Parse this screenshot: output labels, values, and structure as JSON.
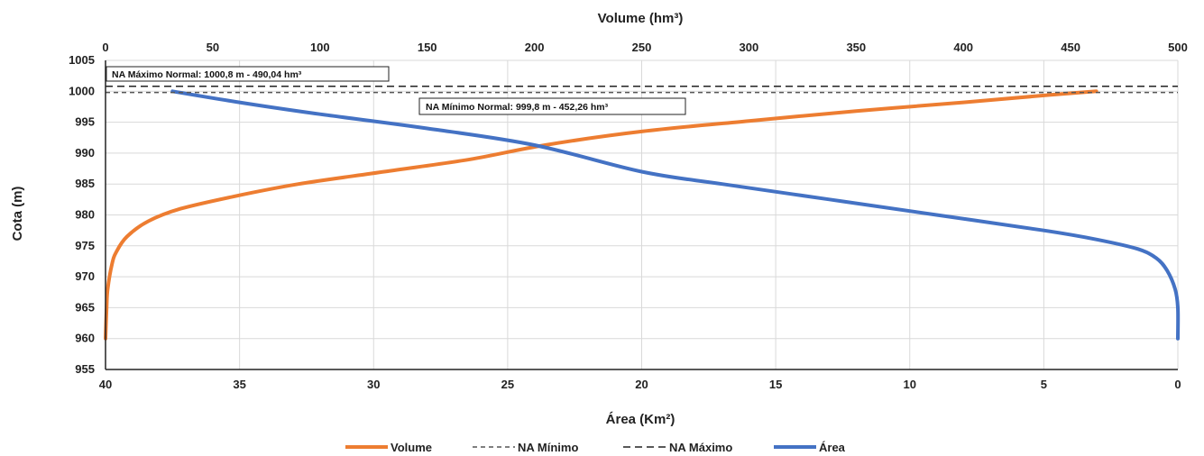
{
  "chart_data": {
    "type": "line",
    "title": "",
    "top_axis": {
      "label": "Volume (hm³)",
      "range": [
        0,
        500
      ],
      "ticks": [
        "0",
        "50",
        "100",
        "150",
        "200",
        "250",
        "300",
        "350",
        "400",
        "450",
        "500"
      ]
    },
    "bottom_axis": {
      "label": "Área (Km²)",
      "range": [
        40,
        0
      ],
      "ticks": [
        "40",
        "35",
        "30",
        "25",
        "20",
        "15",
        "10",
        "5",
        "0"
      ]
    },
    "y_axis": {
      "label": "Cota (m)",
      "range": [
        955,
        1005
      ],
      "ticks": [
        "1005",
        "1000",
        "995",
        "990",
        "985",
        "980",
        "975",
        "970",
        "965",
        "960",
        "955"
      ]
    },
    "grid": true,
    "legend_position": "bottom",
    "series": [
      {
        "name": "Volume",
        "axis": "top",
        "color": "#ED7D31",
        "points": [
          [
            0,
            960
          ],
          [
            0.5,
            965
          ],
          [
            1,
            968
          ],
          [
            3,
            972
          ],
          [
            5,
            974
          ],
          [
            10,
            976.5
          ],
          [
            20,
            979
          ],
          [
            35,
            981
          ],
          [
            60,
            983
          ],
          [
            90,
            985
          ],
          [
            130,
            987
          ],
          [
            170,
            989
          ],
          [
            205,
            991.3
          ],
          [
            250,
            993.5
          ],
          [
            300,
            995.2
          ],
          [
            350,
            996.8
          ],
          [
            400,
            998.2
          ],
          [
            440,
            999.4
          ],
          [
            462,
            1000
          ]
        ]
      },
      {
        "name": "Área",
        "axis": "bottom",
        "color": "#4472C4",
        "points": [
          [
            0,
            960
          ],
          [
            0,
            965
          ],
          [
            0.1,
            968
          ],
          [
            0.4,
            971
          ],
          [
            0.8,
            973
          ],
          [
            1.5,
            974.5
          ],
          [
            3,
            976
          ],
          [
            5,
            977.5
          ],
          [
            9,
            980
          ],
          [
            13,
            982.5
          ],
          [
            17,
            985
          ],
          [
            20,
            987
          ],
          [
            24,
            991.3
          ],
          [
            28,
            994
          ],
          [
            32,
            996.3
          ],
          [
            35,
            998.2
          ],
          [
            37.5,
            1000
          ]
        ]
      },
      {
        "name": "NA Mínimo",
        "style": "dashed",
        "color": "#555555",
        "value": 999.8
      },
      {
        "name": "NA Máximo",
        "style": "dashed",
        "color": "#222222",
        "value": 1000.8
      }
    ],
    "annotations": [
      {
        "text": "NA Máximo Normal:  1000,8 m - 490,04 hm³"
      },
      {
        "text": "NA Mínimo Normal:  999,8 m - 452,26 hm³"
      }
    ]
  }
}
